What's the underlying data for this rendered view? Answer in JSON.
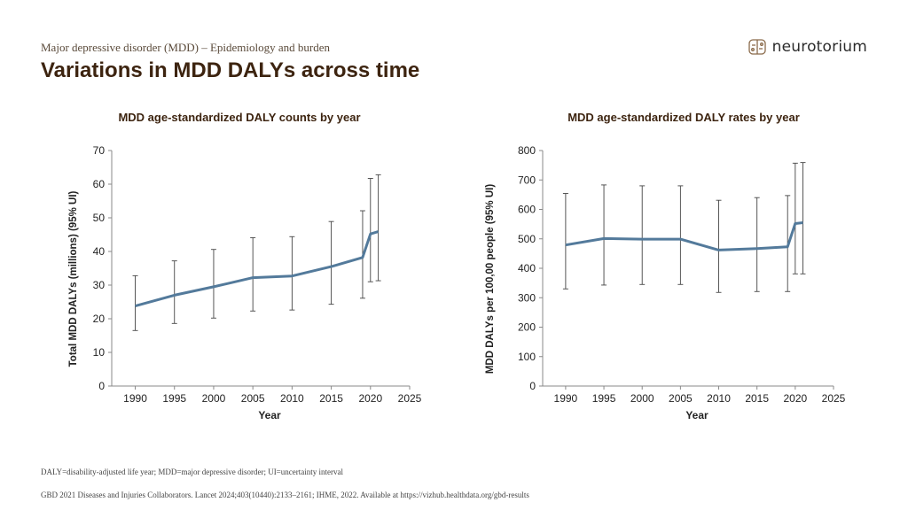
{
  "header": {
    "subtitle": "Major depressive disorder (MDD) – Epidemiology and burden",
    "title": "Variations in MDD DALYs across time"
  },
  "logo": {
    "text": "neurotorium",
    "icon": "brain-logo-icon"
  },
  "colors": {
    "line": "#537a9b",
    "title": "#3d2410",
    "axis": "#888888"
  },
  "footnotes": {
    "abbrev": "DALY=disability-adjusted life year; MDD=major depressive disorder; UI=uncertainty interval",
    "source": "GBD 2021 Diseases and Injuries Collaborators. Lancet 2024;403(10440):2133–2161; IHME, 2022. Available at https://vizhub.healthdata.org/gbd-results"
  },
  "chart_data": [
    {
      "type": "line",
      "title": "MDD age-standardized DALY counts by year",
      "xlabel": "Year",
      "ylabel": "Total MDD DALYs (millions) (95% UI)",
      "xlim": [
        1987,
        2025
      ],
      "ylim": [
        0,
        70
      ],
      "xticks": [
        1990,
        1995,
        2000,
        2005,
        2010,
        2015,
        2020,
        2025
      ],
      "yticks": [
        0,
        10,
        20,
        30,
        40,
        50,
        60,
        70
      ],
      "grid": false,
      "points": [
        {
          "x": 1990,
          "y": 23.8,
          "lo": 16.5,
          "hi": 32.8
        },
        {
          "x": 1995,
          "y": 27.0,
          "lo": 18.6,
          "hi": 37.2
        },
        {
          "x": 2000,
          "y": 29.5,
          "lo": 20.2,
          "hi": 40.6
        },
        {
          "x": 2005,
          "y": 32.2,
          "lo": 22.3,
          "hi": 44.1
        },
        {
          "x": 2010,
          "y": 32.7,
          "lo": 22.6,
          "hi": 44.4
        },
        {
          "x": 2015,
          "y": 35.5,
          "lo": 24.3,
          "hi": 48.9
        },
        {
          "x": 2019,
          "y": 38.2,
          "lo": 26.1,
          "hi": 52.1
        },
        {
          "x": 2020,
          "y": 45.2,
          "lo": 31.0,
          "hi": 61.7
        },
        {
          "x": 2021,
          "y": 45.9,
          "lo": 31.3,
          "hi": 62.8
        }
      ]
    },
    {
      "type": "line",
      "title": "MDD age-standardized DALY rates by year",
      "xlabel": "Year",
      "ylabel": "MDD DALYs per 100,00 people (95% UI)",
      "xlim": [
        1987,
        2025
      ],
      "ylim": [
        0,
        800
      ],
      "xticks": [
        1990,
        1995,
        2000,
        2005,
        2010,
        2015,
        2020,
        2025
      ],
      "yticks": [
        0,
        100,
        200,
        300,
        400,
        500,
        600,
        700,
        800
      ],
      "grid": false,
      "points": [
        {
          "x": 1990,
          "y": 479,
          "lo": 330,
          "hi": 654
        },
        {
          "x": 1995,
          "y": 501,
          "lo": 343,
          "hi": 683
        },
        {
          "x": 2000,
          "y": 499,
          "lo": 345,
          "hi": 680
        },
        {
          "x": 2005,
          "y": 499,
          "lo": 345,
          "hi": 680
        },
        {
          "x": 2010,
          "y": 462,
          "lo": 318,
          "hi": 631
        },
        {
          "x": 2015,
          "y": 467,
          "lo": 321,
          "hi": 640
        },
        {
          "x": 2019,
          "y": 473,
          "lo": 321,
          "hi": 647
        },
        {
          "x": 2020,
          "y": 552,
          "lo": 381,
          "hi": 757
        },
        {
          "x": 2021,
          "y": 555,
          "lo": 381,
          "hi": 759
        }
      ]
    }
  ]
}
